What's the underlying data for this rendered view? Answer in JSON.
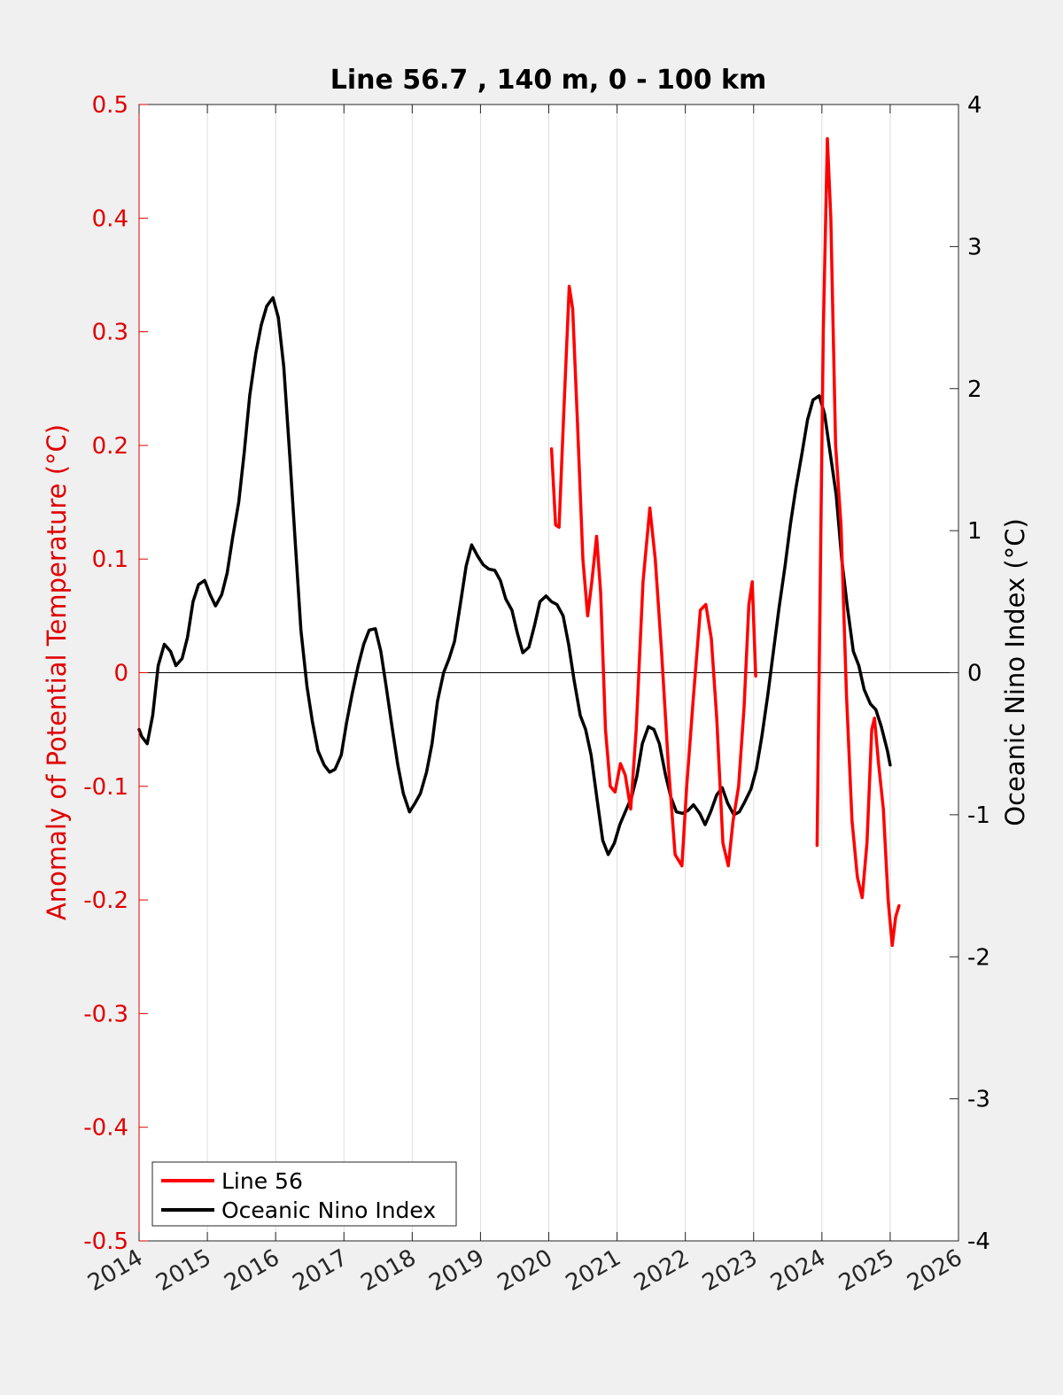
{
  "chart_data": {
    "type": "line",
    "title": "Line 56.7 , 140 m, 0 - 100 km",
    "xlabel": "",
    "ylabel_left": "Anomaly of Potential Temperature (°C)",
    "ylabel_right": "Oceanic Nino Index (°C)",
    "xlim": [
      2014,
      2026
    ],
    "ylim_left": [
      -0.5,
      0.5
    ],
    "ylim_right": [
      -4,
      4
    ],
    "x_ticks": [
      "2014",
      "2015",
      "2016",
      "2017",
      "2018",
      "2019",
      "2020",
      "2021",
      "2022",
      "2023",
      "2024",
      "2025",
      "2026"
    ],
    "y_ticks_left": [
      "0.5",
      "0.4",
      "0.3",
      "0.2",
      "0.1",
      "0",
      "-0.1",
      "-0.2",
      "-0.3",
      "-0.4",
      "-0.5"
    ],
    "y_ticks_right": [
      "4",
      "3",
      "2",
      "1",
      "0",
      "-1",
      "-2",
      "-3",
      "-4"
    ],
    "grid": "vertical",
    "zero_line": true,
    "legend_position": "bottom-left",
    "colors": {
      "line56": "#ff0000",
      "oni": "#000000",
      "left_axis": "#e00000",
      "right_axis": "#000000"
    },
    "series": [
      {
        "name": "Line 56",
        "axis": "left",
        "segments": [
          [
            [
              2020.04,
              0.197
            ],
            [
              2020.1,
              0.13
            ],
            [
              2020.15,
              0.128
            ],
            [
              2020.22,
              0.23
            ],
            [
              2020.3,
              0.34
            ],
            [
              2020.35,
              0.32
            ],
            [
              2020.42,
              0.22
            ],
            [
              2020.5,
              0.1
            ],
            [
              2020.57,
              0.05
            ],
            [
              2020.63,
              0.08
            ],
            [
              2020.7,
              0.12
            ],
            [
              2020.76,
              0.07
            ],
            [
              2020.83,
              -0.05
            ],
            [
              2020.9,
              -0.1
            ],
            [
              2020.97,
              -0.105
            ],
            [
              2021.05,
              -0.08
            ],
            [
              2021.12,
              -0.09
            ],
            [
              2021.2,
              -0.12
            ],
            [
              2021.28,
              -0.05
            ],
            [
              2021.38,
              0.08
            ],
            [
              2021.48,
              0.145
            ],
            [
              2021.56,
              0.1
            ],
            [
              2021.65,
              0.02
            ],
            [
              2021.75,
              -0.08
            ],
            [
              2021.85,
              -0.16
            ],
            [
              2021.95,
              -0.17
            ],
            [
              2022.02,
              -0.1
            ],
            [
              2022.12,
              -0.02
            ],
            [
              2022.22,
              0.055
            ],
            [
              2022.3,
              0.06
            ],
            [
              2022.38,
              0.03
            ],
            [
              2022.46,
              -0.04
            ],
            [
              2022.55,
              -0.15
            ],
            [
              2022.63,
              -0.17
            ],
            [
              2022.7,
              -0.13
            ],
            [
              2022.78,
              -0.1
            ],
            [
              2022.86,
              -0.03
            ],
            [
              2022.93,
              0.06
            ],
            [
              2022.98,
              0.08
            ],
            [
              2023.03,
              -0.003
            ]
          ],
          [
            [
              2023.93,
              -0.152
            ],
            [
              2023.97,
              0.05
            ],
            [
              2024.02,
              0.3
            ],
            [
              2024.08,
              0.47
            ],
            [
              2024.13,
              0.4
            ],
            [
              2024.2,
              0.2
            ],
            [
              2024.28,
              0.13
            ],
            [
              2024.36,
              -0.02
            ],
            [
              2024.44,
              -0.13
            ],
            [
              2024.52,
              -0.18
            ],
            [
              2024.59,
              -0.198
            ],
            [
              2024.66,
              -0.15
            ],
            [
              2024.73,
              -0.05
            ],
            [
              2024.77,
              -0.04
            ],
            [
              2024.83,
              -0.08
            ],
            [
              2024.9,
              -0.12
            ],
            [
              2024.97,
              -0.2
            ],
            [
              2025.03,
              -0.24
            ],
            [
              2025.08,
              -0.215
            ],
            [
              2025.13,
              -0.205
            ]
          ]
        ]
      },
      {
        "name": "Oceanic Nino Index",
        "axis": "right",
        "values": [
          [
            2014.0,
            -0.4
          ],
          [
            2014.04,
            -0.45
          ],
          [
            2014.12,
            -0.5
          ],
          [
            2014.2,
            -0.3
          ],
          [
            2014.28,
            0.05
          ],
          [
            2014.37,
            0.2
          ],
          [
            2014.46,
            0.15
          ],
          [
            2014.54,
            0.05
          ],
          [
            2014.63,
            0.1
          ],
          [
            2014.71,
            0.25
          ],
          [
            2014.79,
            0.5
          ],
          [
            2014.87,
            0.62
          ],
          [
            2014.96,
            0.65
          ],
          [
            2015.04,
            0.55
          ],
          [
            2015.12,
            0.47
          ],
          [
            2015.21,
            0.55
          ],
          [
            2015.29,
            0.7
          ],
          [
            2015.37,
            0.95
          ],
          [
            2015.46,
            1.2
          ],
          [
            2015.54,
            1.55
          ],
          [
            2015.62,
            1.95
          ],
          [
            2015.71,
            2.25
          ],
          [
            2015.79,
            2.45
          ],
          [
            2015.87,
            2.58
          ],
          [
            2015.96,
            2.64
          ],
          [
            2016.04,
            2.5
          ],
          [
            2016.12,
            2.15
          ],
          [
            2016.21,
            1.5
          ],
          [
            2016.29,
            0.9
          ],
          [
            2016.37,
            0.3
          ],
          [
            2016.46,
            -0.1
          ],
          [
            2016.54,
            -0.35
          ],
          [
            2016.62,
            -0.55
          ],
          [
            2016.71,
            -0.65
          ],
          [
            2016.79,
            -0.7
          ],
          [
            2016.87,
            -0.68
          ],
          [
            2016.96,
            -0.58
          ],
          [
            2017.04,
            -0.35
          ],
          [
            2017.12,
            -0.15
          ],
          [
            2017.21,
            0.05
          ],
          [
            2017.29,
            0.2
          ],
          [
            2017.37,
            0.3
          ],
          [
            2017.46,
            0.31
          ],
          [
            2017.54,
            0.15
          ],
          [
            2017.62,
            -0.1
          ],
          [
            2017.71,
            -0.4
          ],
          [
            2017.79,
            -0.65
          ],
          [
            2017.87,
            -0.85
          ],
          [
            2017.96,
            -0.98
          ],
          [
            2018.04,
            -0.92
          ],
          [
            2018.12,
            -0.85
          ],
          [
            2018.21,
            -0.7
          ],
          [
            2018.29,
            -0.5
          ],
          [
            2018.37,
            -0.2
          ],
          [
            2018.46,
            0.0
          ],
          [
            2018.54,
            0.1
          ],
          [
            2018.62,
            0.22
          ],
          [
            2018.71,
            0.5
          ],
          [
            2018.79,
            0.75
          ],
          [
            2018.87,
            0.9
          ],
          [
            2018.96,
            0.82
          ],
          [
            2019.04,
            0.76
          ],
          [
            2019.12,
            0.73
          ],
          [
            2019.21,
            0.72
          ],
          [
            2019.29,
            0.65
          ],
          [
            2019.37,
            0.52
          ],
          [
            2019.46,
            0.44
          ],
          [
            2019.54,
            0.28
          ],
          [
            2019.62,
            0.14
          ],
          [
            2019.71,
            0.18
          ],
          [
            2019.79,
            0.33
          ],
          [
            2019.87,
            0.5
          ],
          [
            2019.96,
            0.54
          ],
          [
            2020.04,
            0.5
          ],
          [
            2020.12,
            0.48
          ],
          [
            2020.21,
            0.4
          ],
          [
            2020.29,
            0.2
          ],
          [
            2020.37,
            -0.05
          ],
          [
            2020.46,
            -0.3
          ],
          [
            2020.54,
            -0.4
          ],
          [
            2020.62,
            -0.58
          ],
          [
            2020.71,
            -0.9
          ],
          [
            2020.79,
            -1.18
          ],
          [
            2020.87,
            -1.28
          ],
          [
            2020.96,
            -1.2
          ],
          [
            2021.04,
            -1.07
          ],
          [
            2021.12,
            -0.98
          ],
          [
            2021.21,
            -0.88
          ],
          [
            2021.29,
            -0.73
          ],
          [
            2021.37,
            -0.5
          ],
          [
            2021.46,
            -0.38
          ],
          [
            2021.54,
            -0.4
          ],
          [
            2021.62,
            -0.5
          ],
          [
            2021.71,
            -0.72
          ],
          [
            2021.79,
            -0.88
          ],
          [
            2021.87,
            -0.98
          ],
          [
            2021.96,
            -0.99
          ],
          [
            2022.04,
            -0.97
          ],
          [
            2022.12,
            -0.93
          ],
          [
            2022.21,
            -0.99
          ],
          [
            2022.29,
            -1.07
          ],
          [
            2022.37,
            -0.98
          ],
          [
            2022.46,
            -0.86
          ],
          [
            2022.54,
            -0.81
          ],
          [
            2022.62,
            -0.92
          ],
          [
            2022.71,
            -1.0
          ],
          [
            2022.79,
            -0.98
          ],
          [
            2022.87,
            -0.91
          ],
          [
            2022.96,
            -0.82
          ],
          [
            2023.04,
            -0.68
          ],
          [
            2023.12,
            -0.45
          ],
          [
            2023.21,
            -0.15
          ],
          [
            2023.29,
            0.15
          ],
          [
            2023.37,
            0.45
          ],
          [
            2023.46,
            0.75
          ],
          [
            2023.54,
            1.05
          ],
          [
            2023.62,
            1.3
          ],
          [
            2023.71,
            1.55
          ],
          [
            2023.79,
            1.78
          ],
          [
            2023.87,
            1.92
          ],
          [
            2023.96,
            1.95
          ],
          [
            2024.04,
            1.82
          ],
          [
            2024.12,
            1.55
          ],
          [
            2024.21,
            1.25
          ],
          [
            2024.29,
            0.8
          ],
          [
            2024.37,
            0.47
          ],
          [
            2024.46,
            0.15
          ],
          [
            2024.54,
            0.05
          ],
          [
            2024.62,
            -0.12
          ],
          [
            2024.71,
            -0.22
          ],
          [
            2024.79,
            -0.26
          ],
          [
            2024.87,
            -0.38
          ],
          [
            2024.96,
            -0.55
          ],
          [
            2025.0,
            -0.65
          ]
        ]
      }
    ]
  }
}
